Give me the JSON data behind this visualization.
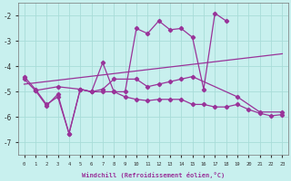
{
  "xlabel": "Windchill (Refroidissement éolien,°C)",
  "background_color": "#c8f0ee",
  "grid_color": "#a8dcd8",
  "line_color": "#993399",
  "x_ticks": [
    0,
    1,
    2,
    3,
    4,
    5,
    6,
    7,
    8,
    9,
    10,
    11,
    12,
    13,
    14,
    15,
    16,
    17,
    18,
    19,
    20,
    21,
    22,
    23
  ],
  "ylim": [
    -7.5,
    -1.5
  ],
  "xlim": [
    -0.5,
    23.5
  ],
  "yticks": [
    -7,
    -6,
    -5,
    -4,
    -3,
    -2
  ],
  "series_spiky_x": [
    0,
    1,
    2,
    3,
    4,
    5,
    6,
    7,
    8,
    9,
    10,
    11,
    12,
    13,
    14,
    15,
    16,
    17,
    18
  ],
  "series_spiky_y": [
    -4.4,
    -4.9,
    -5.5,
    -5.2,
    -6.65,
    -4.9,
    -5.0,
    -3.85,
    -5.0,
    -5.0,
    -2.5,
    -2.7,
    -2.2,
    -2.55,
    -2.5,
    -2.85,
    -4.9,
    -1.9,
    -2.2
  ],
  "series_flat_x": [
    0,
    1,
    2,
    3,
    4,
    5,
    6,
    7,
    8,
    9,
    10,
    11,
    12,
    13,
    14,
    15,
    16,
    17,
    18,
    19,
    20,
    21,
    22,
    23
  ],
  "series_flat_y": [
    -4.5,
    -4.95,
    -5.55,
    -5.1,
    -6.65,
    -4.9,
    -5.0,
    -5.0,
    -5.0,
    -5.2,
    -5.3,
    -5.35,
    -5.3,
    -5.3,
    -5.3,
    -5.5,
    -5.5,
    -5.6,
    -5.6,
    -5.5,
    -5.7,
    -5.85,
    -5.95,
    -5.9
  ],
  "series_sparse_x": [
    1,
    3,
    5,
    6,
    7,
    8,
    10,
    11,
    12,
    13,
    14,
    15,
    19,
    21,
    23
  ],
  "series_sparse_y": [
    -4.95,
    -4.8,
    -4.9,
    -5.0,
    -4.9,
    -4.5,
    -4.5,
    -4.8,
    -4.7,
    -4.6,
    -4.5,
    -4.4,
    -5.2,
    -5.8,
    -5.8
  ],
  "series_trend_x": [
    0,
    23
  ],
  "series_trend_y": [
    -4.7,
    -3.5
  ]
}
